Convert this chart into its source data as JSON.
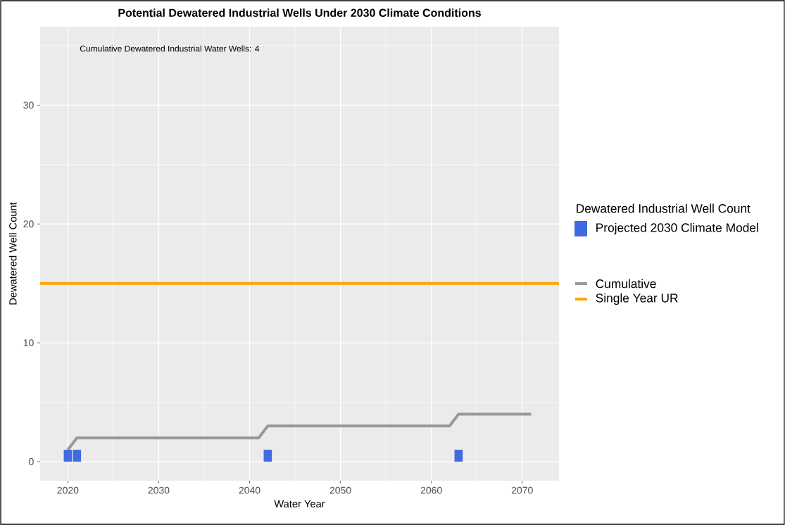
{
  "chart_data": {
    "type": "bar",
    "title": "Potential Dewatered Industrial Wells Under 2030 Climate Conditions",
    "xlabel": "Water Year",
    "ylabel": "Dewatered Well Count",
    "legend_title": "Dewatered Industrial Well Count",
    "annotations": [
      "Cumulative Dewatered Industrial Water Wells: 4"
    ],
    "xlim": [
      2016.95,
      2074.05
    ],
    "ylim": [
      -1.6,
      36.6
    ],
    "xticks": [
      2020,
      2030,
      2040,
      2050,
      2060,
      2070
    ],
    "yticks": [
      0,
      10,
      20,
      30
    ],
    "grid": true,
    "legend": "right",
    "marker": "none",
    "series": [
      {
        "name": "Projected 2030 Climate Model",
        "color": "#4169e1",
        "x": [
          2020,
          2021,
          2042,
          2063
        ],
        "values": [
          1,
          1,
          1,
          1
        ]
      },
      {
        "name": "Cumulative",
        "type": "line",
        "color": "#999999",
        "x": [
          2020,
          2021,
          2041,
          2042,
          2062,
          2063,
          2071
        ],
        "values": [
          1,
          2,
          2,
          3,
          3,
          4,
          4
        ]
      }
    ],
    "ref_lines": [
      {
        "axis": "y",
        "value": 15,
        "label": "Single Year UR",
        "color": "#ffa500"
      }
    ]
  }
}
